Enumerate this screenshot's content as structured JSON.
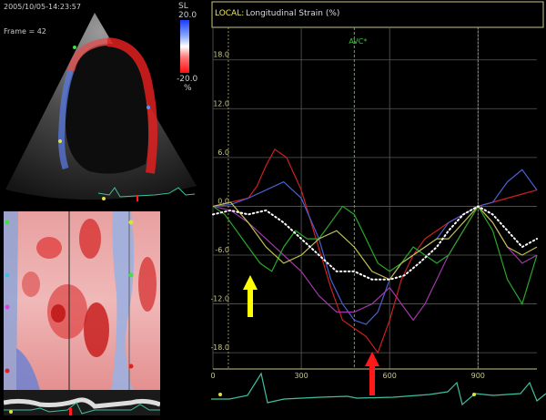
{
  "echo": {
    "timestamp": "2005/10/05-14:23:57",
    "frame_label": "Frame = 42",
    "scale_title": "SL",
    "scale_max": "20.0",
    "scale_min": "-20.0",
    "scale_unit": "%"
  },
  "chart": {
    "header_prefix": "LOCAL:",
    "header_title": "Longitudinal Strain (%)",
    "avc_label": "AVC*",
    "colors": {
      "axis": "#c9c98a",
      "grid": "#5a5a5a",
      "avc": "#3fbf3f",
      "yellow_arrow": "#ffff00",
      "red_arrow": "#ff1a1a"
    },
    "icons": [
      "yellow-up-arrow-icon",
      "red-up-arrow-icon"
    ]
  },
  "chart_data": {
    "type": "line",
    "y_ticks": [
      "18.0",
      "12.0",
      "6.0",
      "0.0",
      "-6.0",
      "-12.0",
      "-18.0"
    ],
    "x_ticks": [
      "0",
      "300",
      "600",
      "900"
    ],
    "xlim": [
      0,
      1100
    ],
    "ylim": [
      -20,
      22
    ],
    "avc_x": 480,
    "grid": true,
    "series": [
      {
        "color": "#cc2020",
        "x": [
          0,
          60,
          120,
          150,
          180,
          210,
          250,
          300,
          350,
          400,
          440,
          480,
          520,
          560,
          600,
          640,
          680,
          720,
          760,
          800,
          850,
          900,
          950,
          1000,
          1050,
          1100
        ],
        "y": [
          0,
          0.5,
          1,
          2.5,
          5,
          7,
          6,
          2,
          -4,
          -10,
          -14,
          -15,
          -16,
          -18,
          -14,
          -9,
          -6,
          -4,
          -3,
          -2,
          -1,
          0,
          0.5,
          1,
          1.5,
          2
        ]
      },
      {
        "color": "#4a5fd0",
        "x": [
          0,
          60,
          120,
          180,
          240,
          300,
          360,
          400,
          440,
          480,
          520,
          560,
          600,
          640,
          680,
          720,
          760,
          800,
          850,
          900,
          950,
          1000,
          1050,
          1100
        ],
        "y": [
          0,
          0.2,
          1,
          2,
          3,
          1,
          -4,
          -9,
          -12,
          -14,
          -14.5,
          -13,
          -9,
          -7,
          -6,
          -5,
          -4,
          -2,
          -1,
          0,
          0.5,
          3,
          4.5,
          2
        ]
      },
      {
        "color": "#a038a8",
        "x": [
          0,
          60,
          120,
          180,
          240,
          300,
          360,
          420,
          480,
          540,
          600,
          640,
          680,
          720,
          760,
          800,
          850,
          900,
          950,
          1000,
          1050,
          1100
        ],
        "y": [
          0,
          -0.5,
          -2,
          -4,
          -6,
          -8,
          -11,
          -13,
          -13,
          -12,
          -10,
          -12,
          -14,
          -12,
          -9,
          -6,
          -3,
          0,
          -2,
          -5,
          -7,
          -6
        ]
      },
      {
        "color": "#28a828",
        "x": [
          0,
          40,
          80,
          120,
          160,
          200,
          240,
          280,
          320,
          360,
          400,
          440,
          480,
          520,
          560,
          600,
          640,
          680,
          720,
          760,
          800,
          850,
          900,
          950,
          1000,
          1050,
          1100
        ],
        "y": [
          0,
          -1,
          -3,
          -5,
          -7,
          -8,
          -5,
          -3,
          -4,
          -4,
          -2,
          0,
          -1,
          -4,
          -7,
          -8,
          -7,
          -5,
          -6,
          -7,
          -6,
          -3,
          0,
          -3,
          -9,
          -12,
          -6
        ]
      },
      {
        "color": "#bfbf50",
        "x": [
          0,
          60,
          120,
          180,
          240,
          300,
          360,
          420,
          480,
          540,
          600,
          640,
          680,
          720,
          760,
          800,
          850,
          900,
          950,
          1000,
          1050,
          1100
        ],
        "y": [
          0,
          0.5,
          -2,
          -5,
          -7,
          -6,
          -4,
          -3,
          -5,
          -8,
          -9,
          -7,
          -6,
          -5,
          -4,
          -4,
          -2,
          0,
          -2,
          -5,
          -6,
          -5
        ]
      },
      {
        "color": "#ffffff",
        "dotted": true,
        "x": [
          0,
          60,
          120,
          180,
          240,
          300,
          360,
          420,
          480,
          540,
          600,
          650,
          700,
          760,
          800,
          850,
          900,
          950,
          1000,
          1050,
          1100
        ],
        "y": [
          -1,
          -0.5,
          -1,
          -0.5,
          -2,
          -4,
          -6,
          -8,
          -8,
          -9,
          -9,
          -8.5,
          -7,
          -5,
          -3,
          -1,
          0,
          -1,
          -3,
          -5,
          -4
        ]
      }
    ]
  }
}
